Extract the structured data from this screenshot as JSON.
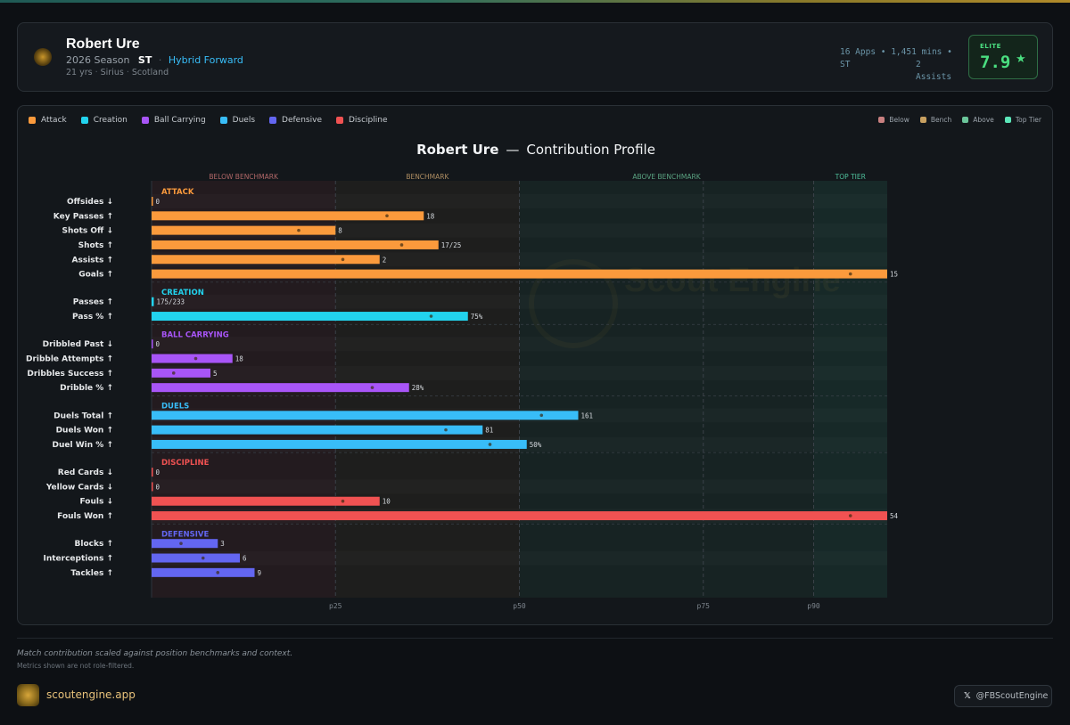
{
  "header": {
    "name": "Robert Ure",
    "season": "2026 Season",
    "position": "ST",
    "role": "Hybrid Forward",
    "age": "21 yrs",
    "club": "Sirius",
    "nation": "Scotland",
    "stats_line1": "16 Apps • 1,451 mins •",
    "stats_pos": "ST",
    "stats_assists": "2",
    "stats_assists_label": "Assists",
    "rating_label": "ELITE",
    "rating_value": "7.9"
  },
  "legend": {
    "categories": [
      {
        "label": "Attack",
        "color": "#fb9a3c"
      },
      {
        "label": "Creation",
        "color": "#22d3ee"
      },
      {
        "label": "Ball Carrying",
        "color": "#a855f7"
      },
      {
        "label": "Duels",
        "color": "#38bdf8"
      },
      {
        "label": "Defensive",
        "color": "#6366f1"
      },
      {
        "label": "Discipline",
        "color": "#f05252"
      }
    ],
    "zones": [
      {
        "label": "Below",
        "color": "#c98080"
      },
      {
        "label": "Bench",
        "color": "#c8a060"
      },
      {
        "label": "Above",
        "color": "#6bc59a"
      },
      {
        "label": "Top Tier",
        "color": "#5ce6b8"
      }
    ]
  },
  "watermark": "Scout Engine",
  "chart_data": {
    "type": "bar",
    "orientation": "horizontal",
    "title_name": "Robert Ure",
    "title_dash": "—",
    "title_text": "Contribution Profile",
    "x_scale": "percentile",
    "xlim": [
      0,
      100
    ],
    "zones": [
      {
        "label": "BELOW BENCHMARK",
        "from": 0,
        "to": 25,
        "color": "#d77a7a"
      },
      {
        "label": "BENCHMARK",
        "from": 25,
        "to": 50,
        "color": "#d2a872"
      },
      {
        "label": "ABOVE BENCHMARK",
        "from": 50,
        "to": 90,
        "color": "#6bc59a"
      },
      {
        "label": "TOP TIER",
        "from": 90,
        "to": 100,
        "color": "#5ce6b8"
      }
    ],
    "ticks": [
      {
        "label": "p25",
        "value": 25
      },
      {
        "label": "p50",
        "value": 50
      },
      {
        "label": "p75",
        "value": 75
      },
      {
        "label": "p90",
        "value": 90
      }
    ],
    "groups": [
      {
        "name": "ATTACK",
        "color": "#fb9a3c",
        "bar_color": "#fb9a3c",
        "rows": [
          {
            "label": "Offsides ↓",
            "percentile": 0,
            "value": "0"
          },
          {
            "label": "Key Passes ↑",
            "percentile": 37,
            "value": "18",
            "marker": 32
          },
          {
            "label": "Shots Off ↓",
            "percentile": 25,
            "value": "8",
            "marker": 20
          },
          {
            "label": "Shots ↑",
            "percentile": 39,
            "value": "17/25",
            "marker": 34
          },
          {
            "label": "Assists ↑",
            "percentile": 31,
            "value": "2",
            "marker": 26
          },
          {
            "label": "Goals ↑",
            "percentile": 100,
            "value": "15",
            "marker": 95
          }
        ]
      },
      {
        "name": "CREATION",
        "color": "#22d3ee",
        "bar_color": "#22d3ee",
        "rows": [
          {
            "label": "Passes ↑",
            "percentile": 0.3,
            "value": "175/233"
          },
          {
            "label": "Pass % ↑",
            "percentile": 43,
            "value": "75%",
            "marker": 38
          }
        ]
      },
      {
        "name": "BALL CARRYING",
        "color": "#a855f7",
        "bar_color": "#a855f7",
        "rows": [
          {
            "label": "Dribbled Past ↓",
            "percentile": 0,
            "value": "0"
          },
          {
            "label": "Dribble Attempts ↑",
            "percentile": 11,
            "value": "18",
            "marker": 6
          },
          {
            "label": "Dribbles Success ↑",
            "percentile": 8,
            "value": "5",
            "marker": 3
          },
          {
            "label": "Dribble % ↑",
            "percentile": 35,
            "value": "28%",
            "marker": 30
          }
        ]
      },
      {
        "name": "DUELS",
        "color": "#38bdf8",
        "bar_color": "#38bdf8",
        "rows": [
          {
            "label": "Duels Total ↑",
            "percentile": 58,
            "value": "161",
            "marker": 53
          },
          {
            "label": "Duels Won ↑",
            "percentile": 45,
            "value": "81",
            "marker": 40
          },
          {
            "label": "Duel Win % ↑",
            "percentile": 51,
            "value": "50%",
            "marker": 46
          }
        ]
      },
      {
        "name": "DISCIPLINE",
        "color": "#f05252",
        "bar_color": "#f05252",
        "rows": [
          {
            "label": "Red Cards ↓",
            "percentile": 0,
            "value": "0"
          },
          {
            "label": "Yellow Cards ↓",
            "percentile": 0,
            "value": "0"
          },
          {
            "label": "Fouls ↓",
            "percentile": 31,
            "value": "10",
            "marker": 26
          },
          {
            "label": "Fouls Won ↑",
            "percentile": 100,
            "value": "54",
            "marker": 95
          }
        ]
      },
      {
        "name": "DEFENSIVE",
        "color": "#6366f1",
        "bar_color": "#6366f1",
        "rows": [
          {
            "label": "Blocks ↑",
            "percentile": 9,
            "value": "3",
            "marker": 4
          },
          {
            "label": "Interceptions ↑",
            "percentile": 12,
            "value": "6",
            "marker": 7
          },
          {
            "label": "Tackles ↑",
            "percentile": 14,
            "value": "9",
            "marker": 9
          }
        ]
      }
    ]
  },
  "footer": {
    "note": "Match contribution scaled against position benchmarks and context.",
    "note2": "Metrics shown are not role-filtered.",
    "site": "scoutengine.app",
    "social": "@FBScoutEngine"
  }
}
